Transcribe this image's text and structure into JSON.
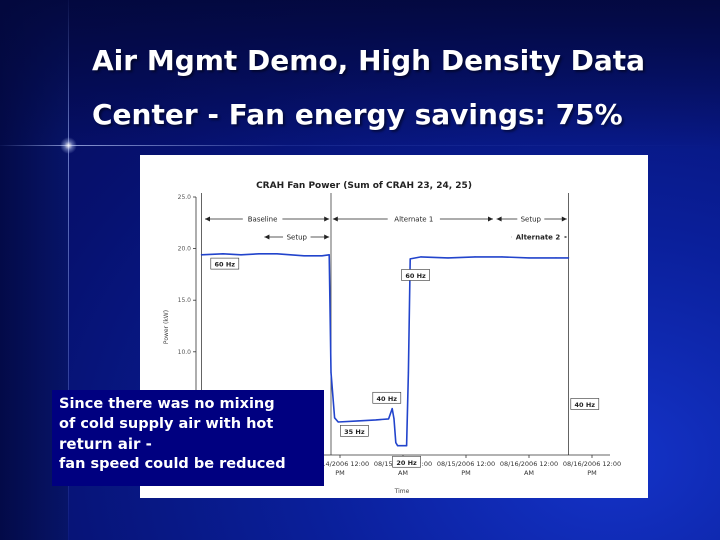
{
  "slide": {
    "title_line1": "Air Mgmt Demo, High Density Data",
    "title_line2": "Center - Fan energy savings: 75%",
    "callout": [
      "Since there was no mixing",
      "of cold supply air with hot",
      "return air -",
      "fan speed could be reduced"
    ],
    "colors": {
      "background": "#0a1f9a",
      "callout_bg": "#000080",
      "line": "#2244cc"
    }
  },
  "chart_data": {
    "type": "line",
    "title": "CRAH Fan Power (Sum of CRAH 23, 24, 25)",
    "ylabel": "Power (kW)",
    "xlabel": "Time",
    "ylim": [
      0,
      25
    ],
    "yticks": [
      "25.0",
      "20.0",
      "15.0",
      "10.0"
    ],
    "xticks": [
      {
        "x": 0.15,
        "label": [
          "08/14/2006 12:00",
          "PM"
        ]
      },
      {
        "x": 0.5,
        "label": [
          "08/15/2006 12:00",
          "AM"
        ]
      },
      {
        "x": 0.85,
        "label": [
          "08/15/2006 12:00",
          "PM"
        ]
      },
      {
        "x": 1.2,
        "label": [
          "08/16/2006 12:00",
          "AM"
        ]
      },
      {
        "x": 1.55,
        "label": [
          "08/16/2006 12:00",
          "PM"
        ]
      }
    ],
    "xlim": [
      -0.65,
      1.65
    ],
    "series": [
      {
        "values": [
          [
            -0.62,
            19.4
          ],
          [
            -0.5,
            19.5
          ],
          [
            -0.4,
            19.4
          ],
          [
            -0.3,
            19.5
          ],
          [
            -0.2,
            19.5
          ],
          [
            -0.05,
            19.3
          ],
          [
            0.05,
            19.3
          ],
          [
            0.09,
            19.4
          ],
          [
            0.1,
            8.0
          ],
          [
            0.12,
            3.6
          ],
          [
            0.14,
            3.2
          ],
          [
            0.25,
            3.3
          ],
          [
            0.35,
            3.4
          ],
          [
            0.42,
            3.5
          ],
          [
            0.44,
            4.5
          ],
          [
            0.45,
            3.5
          ],
          [
            0.46,
            1.2
          ],
          [
            0.47,
            0.9
          ],
          [
            0.52,
            0.9
          ],
          [
            0.53,
            8.0
          ],
          [
            0.54,
            19.0
          ],
          [
            0.6,
            19.2
          ],
          [
            0.75,
            19.1
          ],
          [
            0.9,
            19.2
          ],
          [
            1.05,
            19.2
          ],
          [
            1.2,
            19.1
          ],
          [
            1.35,
            19.1
          ],
          [
            1.42,
            19.1
          ]
        ]
      }
    ],
    "annotations": {
      "phases_row1": [
        "Baseline",
        "Alternate 1",
        "Setup"
      ],
      "phases_row2": [
        "Setup",
        "Alternate 2"
      ],
      "hz_labels": [
        "60 Hz",
        "60 Hz",
        "40 Hz",
        "35 Hz",
        "20 Hz",
        "40 Hz"
      ]
    }
  }
}
